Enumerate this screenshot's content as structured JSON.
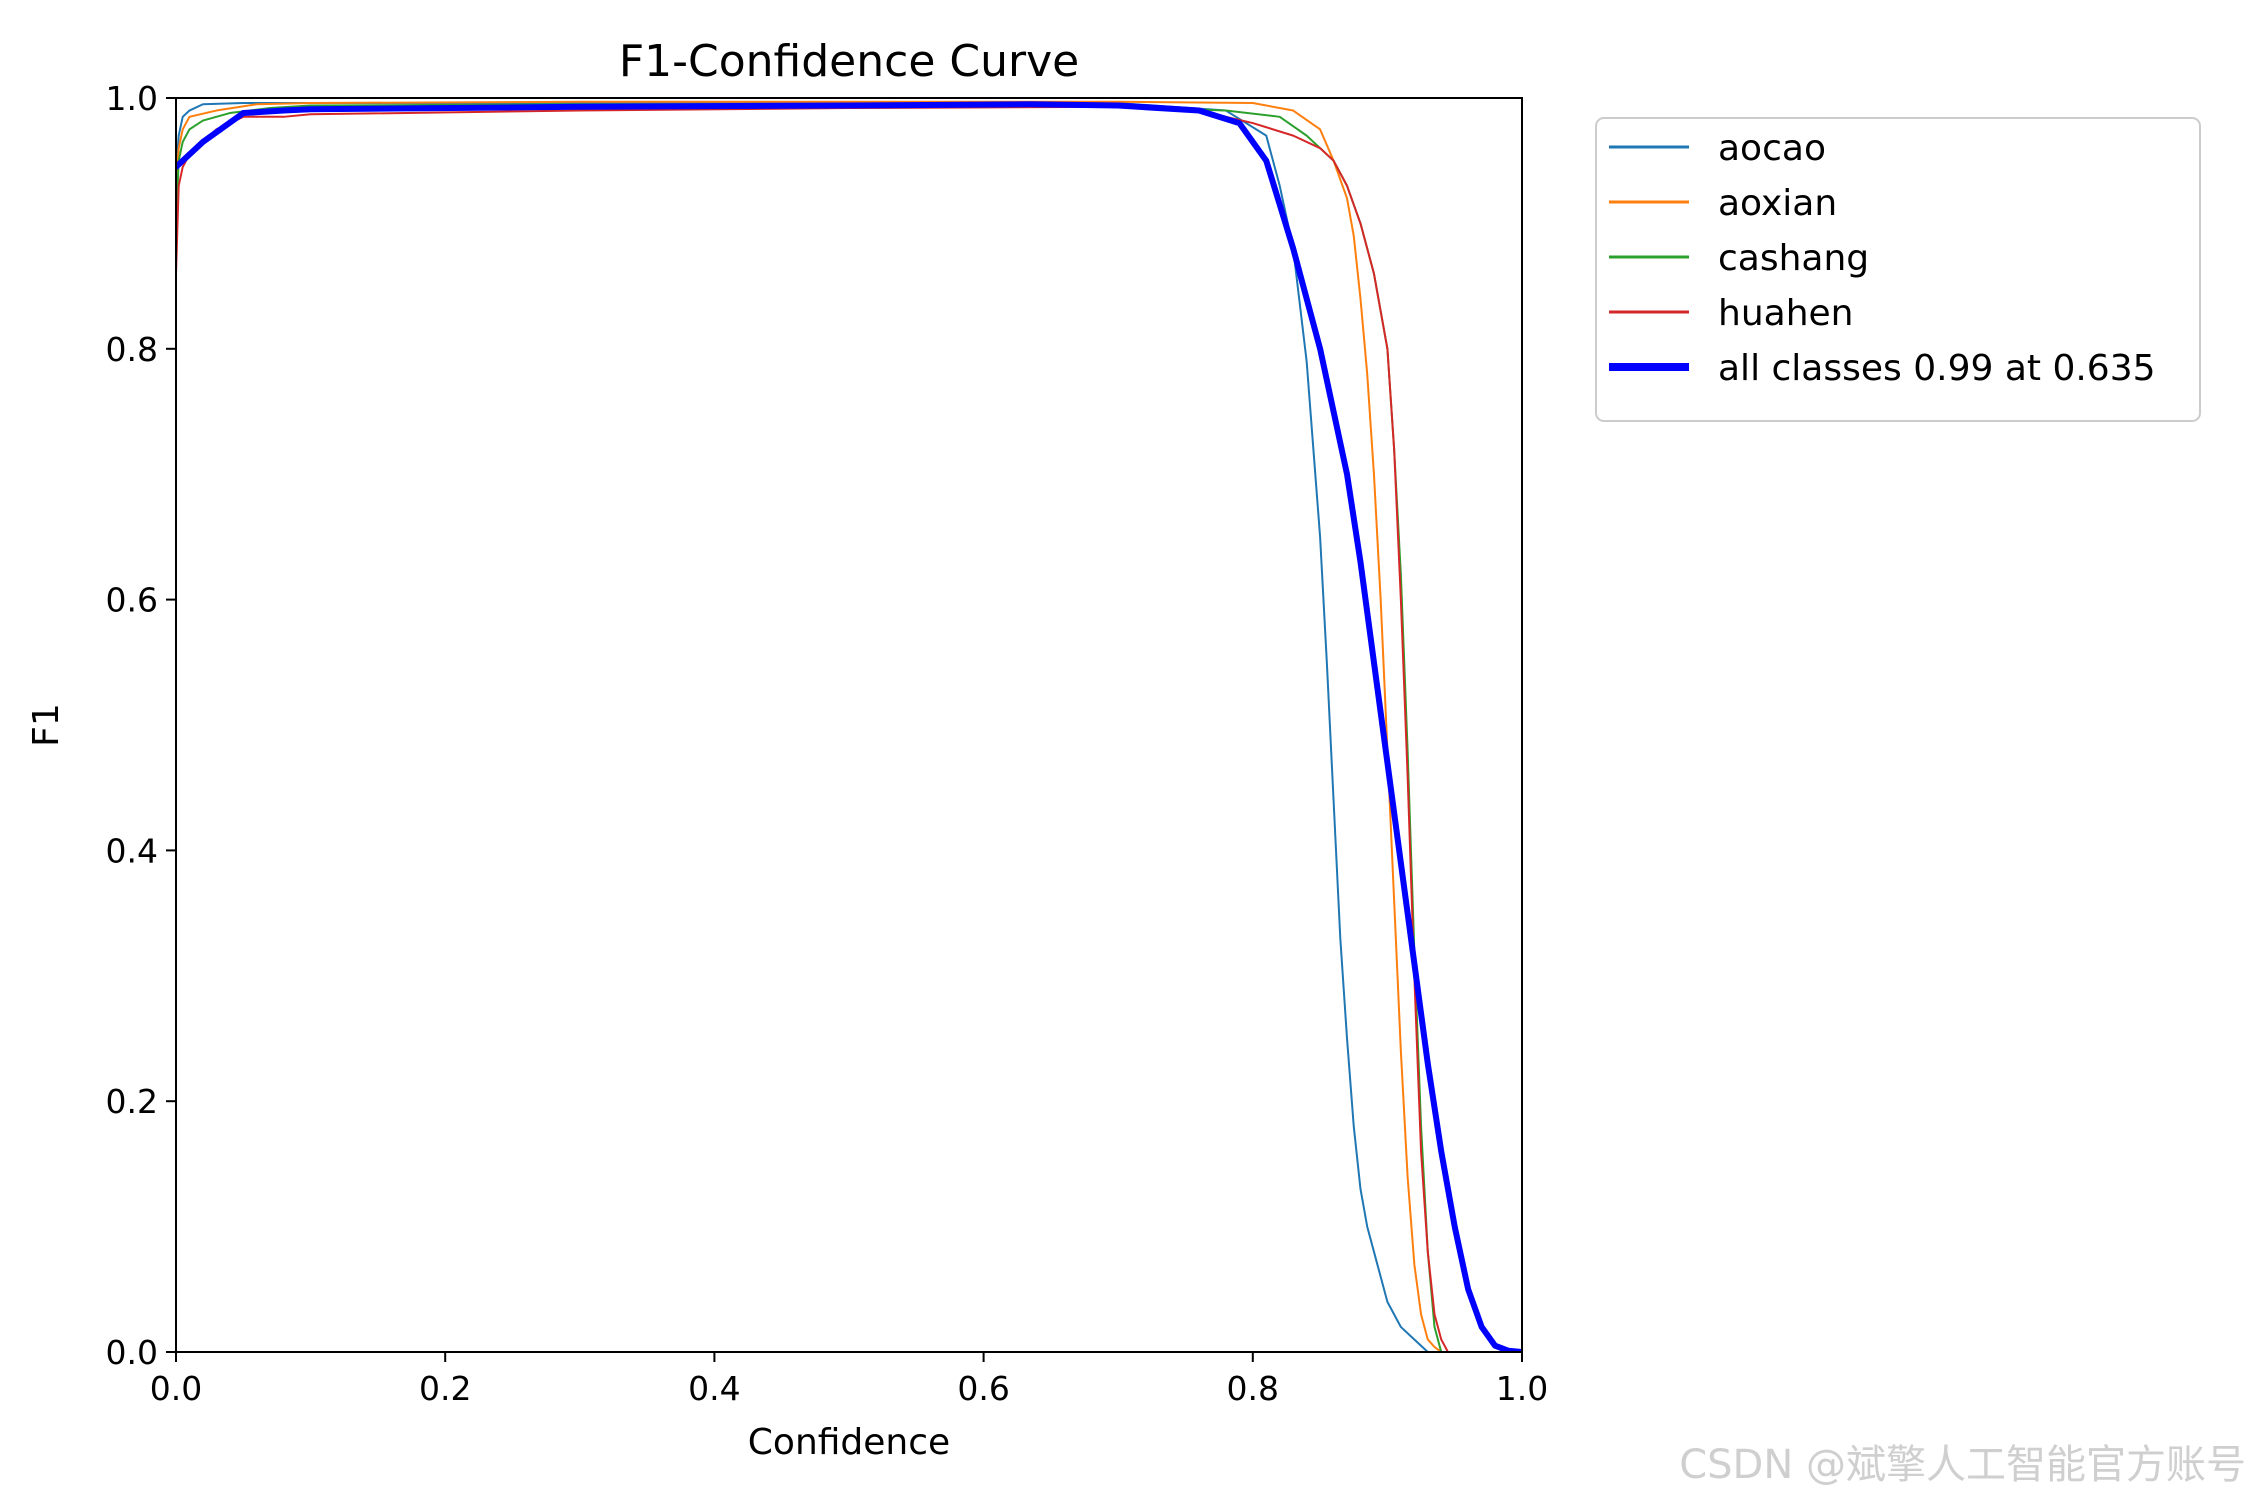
{
  "chart_data": {
    "type": "line",
    "title": "F1-Confidence Curve",
    "xlabel": "Confidence",
    "ylabel": "F1",
    "xlim": [
      0.0,
      1.0
    ],
    "ylim": [
      0.0,
      1.0
    ],
    "xticks": [
      "0.0",
      "0.2",
      "0.4",
      "0.6",
      "0.8",
      "1.0"
    ],
    "yticks": [
      "0.0",
      "0.2",
      "0.4",
      "0.6",
      "0.8",
      "1.0"
    ],
    "grid": false,
    "legend_position": "outside-top-right",
    "series": [
      {
        "name": "aocao",
        "color": "#1f77b4",
        "width": 2,
        "x": [
          0.0,
          0.002,
          0.005,
          0.01,
          0.02,
          0.05,
          0.1,
          0.3,
          0.5,
          0.7,
          0.78,
          0.81,
          0.82,
          0.83,
          0.84,
          0.845,
          0.85,
          0.855,
          0.86,
          0.865,
          0.87,
          0.875,
          0.88,
          0.885,
          0.89,
          0.895,
          0.9,
          0.91,
          0.92,
          0.925,
          0.93,
          0.94,
          1.0
        ],
        "y": [
          0.94,
          0.97,
          0.985,
          0.99,
          0.995,
          0.996,
          0.996,
          0.996,
          0.996,
          0.996,
          0.99,
          0.97,
          0.93,
          0.88,
          0.79,
          0.72,
          0.65,
          0.55,
          0.44,
          0.33,
          0.25,
          0.18,
          0.13,
          0.1,
          0.08,
          0.06,
          0.04,
          0.02,
          0.01,
          0.005,
          0.0,
          0.0,
          0.0
        ]
      },
      {
        "name": "aoxian",
        "color": "#ff7f0e",
        "width": 2,
        "x": [
          0.0,
          0.002,
          0.005,
          0.01,
          0.03,
          0.06,
          0.1,
          0.3,
          0.5,
          0.7,
          0.8,
          0.83,
          0.85,
          0.86,
          0.87,
          0.875,
          0.88,
          0.885,
          0.89,
          0.895,
          0.9,
          0.905,
          0.91,
          0.915,
          0.92,
          0.925,
          0.93,
          0.935,
          0.94,
          1.0
        ],
        "y": [
          0.93,
          0.96,
          0.975,
          0.985,
          0.99,
          0.995,
          0.996,
          0.997,
          0.997,
          0.997,
          0.996,
          0.99,
          0.975,
          0.95,
          0.92,
          0.89,
          0.84,
          0.78,
          0.7,
          0.6,
          0.48,
          0.36,
          0.24,
          0.14,
          0.07,
          0.03,
          0.01,
          0.004,
          0.0,
          0.0
        ]
      },
      {
        "name": "cashang",
        "color": "#2ca02c",
        "width": 2,
        "x": [
          0.0,
          0.002,
          0.005,
          0.01,
          0.02,
          0.04,
          0.07,
          0.1,
          0.3,
          0.5,
          0.7,
          0.78,
          0.82,
          0.84,
          0.86,
          0.87,
          0.88,
          0.89,
          0.9,
          0.905,
          0.91,
          0.915,
          0.92,
          0.925,
          0.93,
          0.935,
          0.94,
          1.0
        ],
        "y": [
          0.9,
          0.95,
          0.965,
          0.975,
          0.982,
          0.988,
          0.992,
          0.994,
          0.995,
          0.995,
          0.993,
          0.99,
          0.985,
          0.97,
          0.95,
          0.93,
          0.9,
          0.86,
          0.8,
          0.72,
          0.62,
          0.48,
          0.32,
          0.18,
          0.08,
          0.02,
          0.0,
          0.0
        ]
      },
      {
        "name": "huahen",
        "color": "#d62728",
        "width": 2,
        "x": [
          0.0,
          0.002,
          0.005,
          0.01,
          0.03,
          0.05,
          0.08,
          0.1,
          0.3,
          0.5,
          0.7,
          0.76,
          0.78,
          0.8,
          0.83,
          0.85,
          0.86,
          0.87,
          0.88,
          0.89,
          0.9,
          0.905,
          0.91,
          0.915,
          0.92,
          0.925,
          0.93,
          0.935,
          0.94,
          0.945,
          1.0
        ],
        "y": [
          0.86,
          0.93,
          0.945,
          0.955,
          0.975,
          0.985,
          0.985,
          0.987,
          0.99,
          0.992,
          0.993,
          0.99,
          0.985,
          0.98,
          0.97,
          0.96,
          0.95,
          0.93,
          0.9,
          0.86,
          0.8,
          0.72,
          0.6,
          0.46,
          0.3,
          0.16,
          0.08,
          0.03,
          0.01,
          0.0,
          0.0
        ]
      },
      {
        "name": "all classes 0.99 at 0.635",
        "color": "#0000ff",
        "width": 6,
        "x": [
          0.0,
          0.02,
          0.05,
          0.08,
          0.1,
          0.3,
          0.5,
          0.635,
          0.7,
          0.76,
          0.79,
          0.81,
          0.83,
          0.85,
          0.87,
          0.88,
          0.89,
          0.9,
          0.91,
          0.92,
          0.93,
          0.94,
          0.95,
          0.96,
          0.97,
          0.98,
          0.99,
          1.0
        ],
        "y": [
          0.945,
          0.965,
          0.988,
          0.99,
          0.991,
          0.993,
          0.994,
          0.995,
          0.994,
          0.99,
          0.98,
          0.95,
          0.88,
          0.8,
          0.7,
          0.63,
          0.55,
          0.47,
          0.39,
          0.31,
          0.23,
          0.16,
          0.1,
          0.05,
          0.02,
          0.005,
          0.001,
          0.0
        ]
      }
    ]
  },
  "watermark": "CSDN @斌擎人工智能官方账号"
}
